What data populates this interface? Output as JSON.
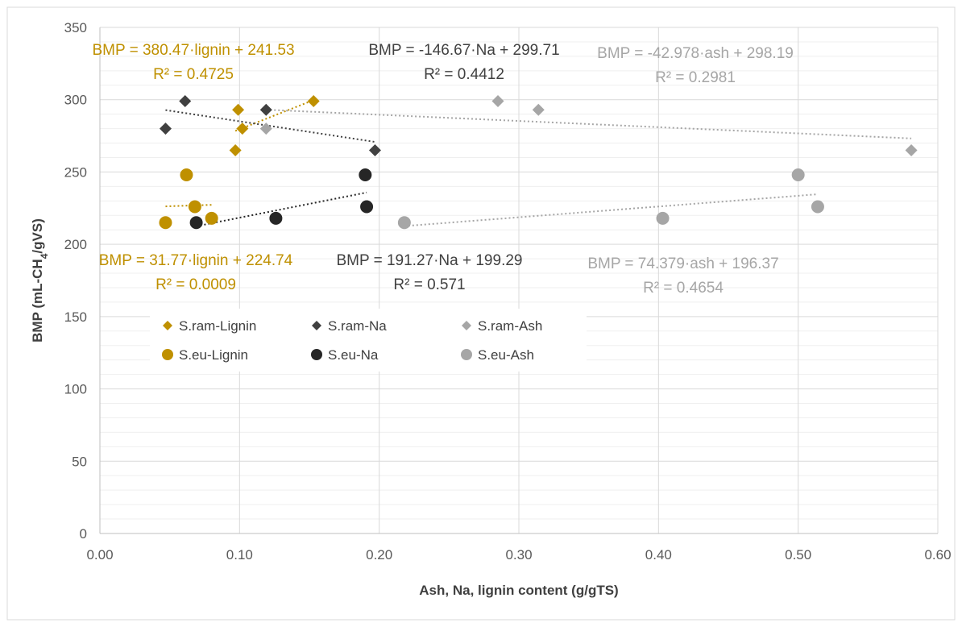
{
  "chart_data": {
    "type": "scatter",
    "xlabel": "Ash, Na, lignin content (g/gTS)",
    "ylabel_parts": [
      "BMP (mL-CH",
      "4",
      "/gVS)"
    ],
    "xlim": [
      0,
      0.6
    ],
    "ylim": [
      0,
      350
    ],
    "x_ticks": [
      "0.00",
      "0.10",
      "0.20",
      "0.30",
      "0.40",
      "0.50",
      "0.60"
    ],
    "y_ticks": [
      "0",
      "50",
      "100",
      "150",
      "200",
      "250",
      "300",
      "350"
    ],
    "grid": "major and minor horizontal, major vertical",
    "legend": {
      "position": "inside-left"
    },
    "series": [
      {
        "name": "S.ram-Lignin",
        "marker": "diamond",
        "color": "#BF9000",
        "points": [
          [
            0.097,
            265
          ],
          [
            0.099,
            293
          ],
          [
            0.102,
            280
          ],
          [
            0.153,
            299
          ]
        ],
        "trendline": {
          "slope": 380.47,
          "intercept": 241.53,
          "x_range": [
            0.097,
            0.153
          ]
        }
      },
      {
        "name": "S.ram-Na",
        "marker": "diamond",
        "color": "#404040",
        "points": [
          [
            0.047,
            280
          ],
          [
            0.061,
            299
          ],
          [
            0.119,
            293
          ],
          [
            0.197,
            265
          ]
        ],
        "trendline": {
          "slope": -146.67,
          "intercept": 299.71,
          "x_range": [
            0.047,
            0.197
          ]
        }
      },
      {
        "name": "S.ram-Ash",
        "marker": "diamond",
        "color": "#A6A6A6",
        "points": [
          [
            0.119,
            280
          ],
          [
            0.285,
            299
          ],
          [
            0.314,
            293
          ],
          [
            0.581,
            265
          ]
        ],
        "trendline": {
          "slope": -42.978,
          "intercept": 298.19,
          "x_range": [
            0.119,
            0.581
          ]
        }
      },
      {
        "name": "S.eu-Lignin",
        "marker": "circle",
        "color": "#BF9000",
        "points": [
          [
            0.047,
            215
          ],
          [
            0.062,
            248
          ],
          [
            0.068,
            226
          ],
          [
            0.08,
            218
          ]
        ],
        "trendline": {
          "slope": 31.77,
          "intercept": 224.74,
          "x_range": [
            0.047,
            0.08
          ]
        }
      },
      {
        "name": "S.eu-Na",
        "marker": "circle",
        "color": "#262626",
        "points": [
          [
            0.069,
            215
          ],
          [
            0.126,
            218
          ],
          [
            0.19,
            248
          ],
          [
            0.191,
            226
          ]
        ],
        "trendline": {
          "slope": 191.27,
          "intercept": 199.29,
          "x_range": [
            0.069,
            0.191
          ]
        }
      },
      {
        "name": "S.eu-Ash",
        "marker": "circle",
        "color": "#A6A6A6",
        "points": [
          [
            0.218,
            215
          ],
          [
            0.403,
            218
          ],
          [
            0.5,
            248
          ],
          [
            0.514,
            226
          ]
        ],
        "trendline": {
          "slope": 74.379,
          "intercept": 196.37,
          "x_range": [
            0.218,
            0.514
          ]
        }
      }
    ],
    "annotations": [
      {
        "lines": [
          "BMP = 380.47·lignin + 241.53",
          "R² = 0.4725"
        ],
        "color": "#BF9000"
      },
      {
        "lines": [
          "BMP = -146.67·Na + 299.71",
          "R² = 0.4412"
        ],
        "color": "#404040"
      },
      {
        "lines": [
          "BMP = -42.978·ash + 298.19",
          "R² = 0.2981"
        ],
        "color": "#A6A6A6"
      },
      {
        "lines": [
          "BMP = 31.77·lignin + 224.74",
          "R² = 0.0009"
        ],
        "color": "#BF9000"
      },
      {
        "lines": [
          "BMP = 191.27·Na + 199.29",
          "R² = 0.571"
        ],
        "color": "#404040"
      },
      {
        "lines": [
          "BMP = 74.379·ash + 196.37",
          "R² = 0.4654"
        ],
        "color": "#A6A6A6"
      }
    ]
  }
}
